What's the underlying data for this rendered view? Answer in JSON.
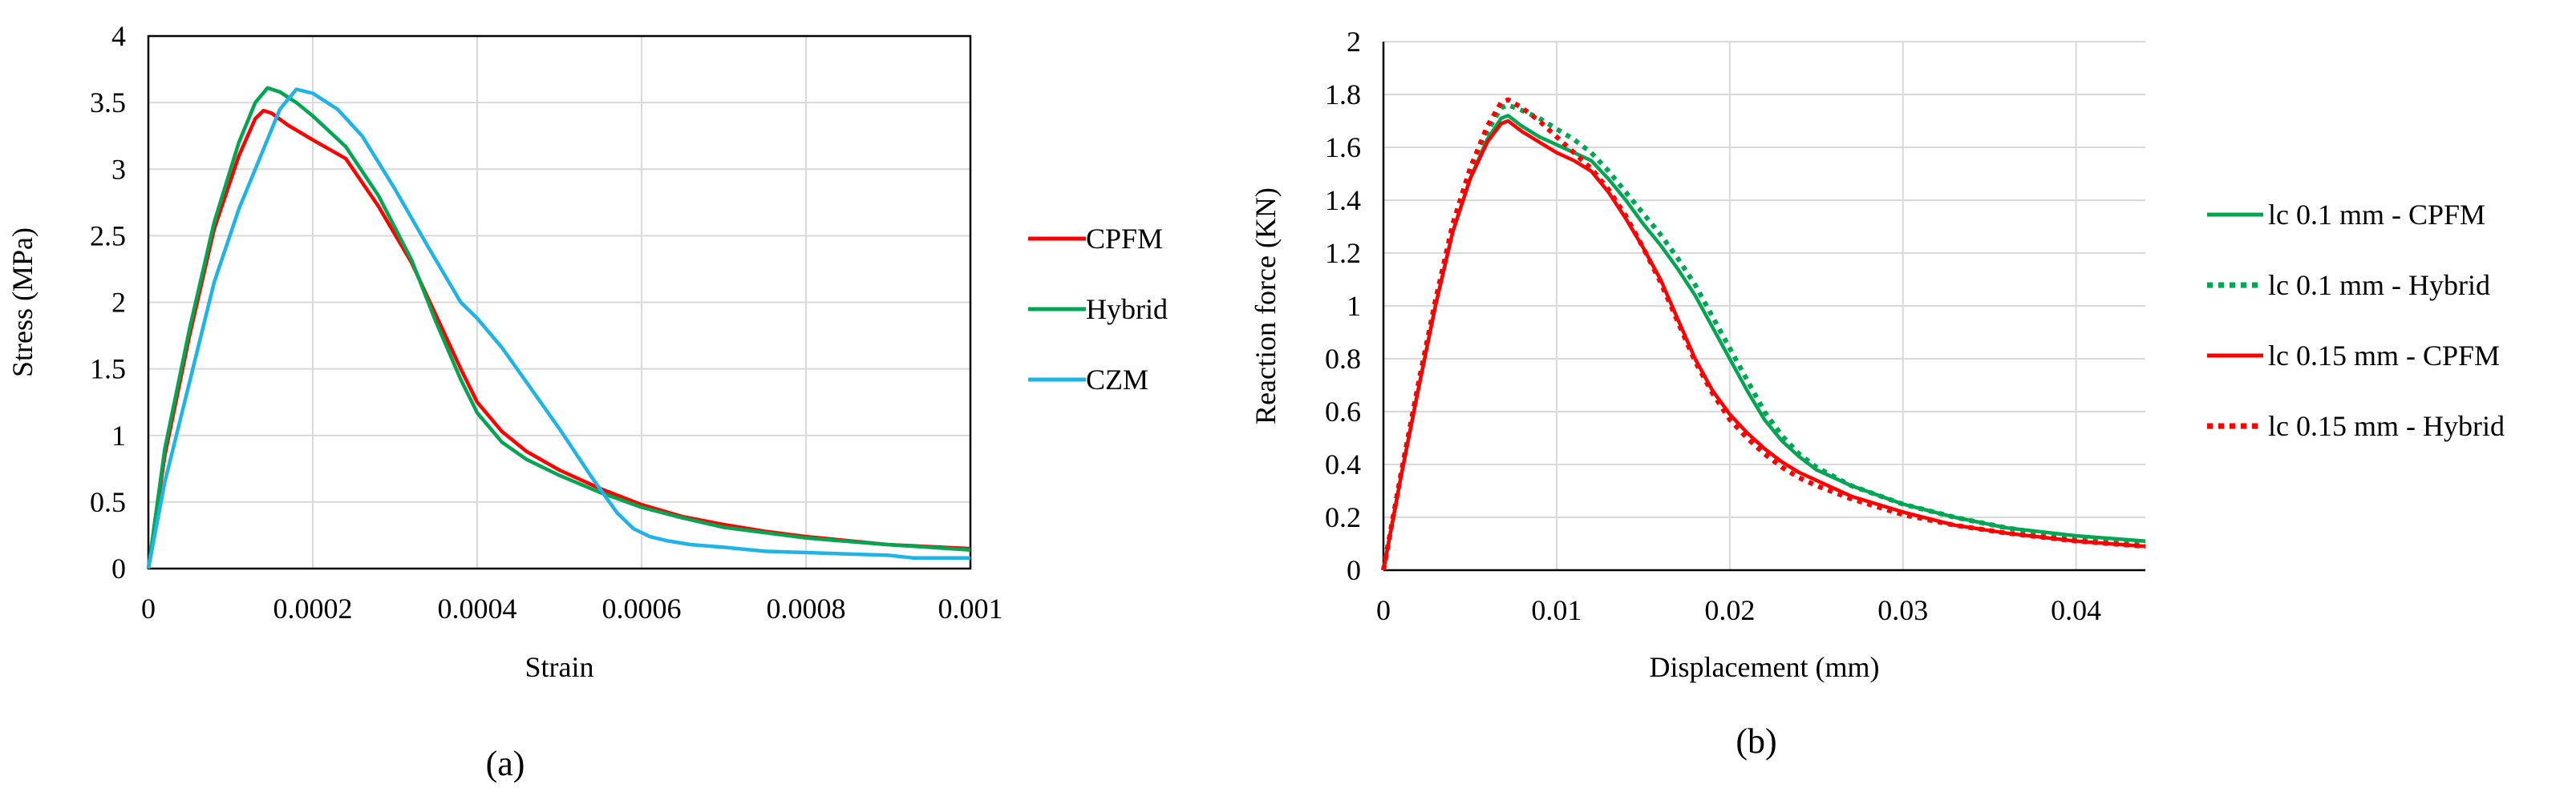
{
  "chart_data": [
    {
      "type": "line",
      "id": "a",
      "caption": "(a)",
      "xlabel": "Strain",
      "ylabel": "Stress (MPa)",
      "xlim": [
        0,
        0.001
      ],
      "ylim": [
        0,
        4
      ],
      "xticks": [
        0,
        0.0002,
        0.0004,
        0.0006,
        0.0008,
        0.001
      ],
      "xtick_labels": [
        "0",
        "0.0002",
        "0.0004",
        "0.0006",
        "0.0008",
        "0.001"
      ],
      "yticks": [
        0,
        0.5,
        1,
        1.5,
        2,
        2.5,
        3,
        3.5,
        4
      ],
      "ytick_labels": [
        "0",
        "0.5",
        "1",
        "1.5",
        "2",
        "2.5",
        "3",
        "3.5",
        "4"
      ],
      "grid": true,
      "legend_position": "right",
      "series": [
        {
          "name": "CPFM",
          "color": "#ff0000",
          "dash": "solid",
          "x": [
            0,
            2e-05,
            5e-05,
            8e-05,
            0.00011,
            0.00013,
            0.00014,
            0.00015,
            0.00017,
            0.0002,
            0.00024,
            0.00028,
            0.00032,
            0.00035,
            0.00038,
            0.0004,
            0.00043,
            0.00046,
            0.0005,
            0.00055,
            0.0006,
            0.00065,
            0.0007,
            0.00075,
            0.0008,
            0.0009,
            0.001
          ],
          "values": [
            0,
            0.85,
            1.75,
            2.55,
            3.1,
            3.38,
            3.44,
            3.42,
            3.33,
            3.22,
            3.08,
            2.72,
            2.3,
            1.9,
            1.5,
            1.25,
            1.03,
            0.88,
            0.74,
            0.6,
            0.48,
            0.39,
            0.33,
            0.28,
            0.24,
            0.18,
            0.15
          ]
        },
        {
          "name": "Hybrid",
          "color": "#00a651",
          "dash": "solid",
          "x": [
            0,
            2e-05,
            5e-05,
            8e-05,
            0.00011,
            0.00013,
            0.000145,
            0.00016,
            0.00018,
            0.0002,
            0.00024,
            0.00028,
            0.00032,
            0.00035,
            0.00038,
            0.0004,
            0.00043,
            0.00046,
            0.0005,
            0.00055,
            0.0006,
            0.00065,
            0.0007,
            0.00075,
            0.0008,
            0.0009,
            0.001
          ],
          "values": [
            0,
            0.9,
            1.8,
            2.6,
            3.2,
            3.5,
            3.61,
            3.58,
            3.5,
            3.4,
            3.17,
            2.8,
            2.32,
            1.85,
            1.42,
            1.17,
            0.95,
            0.82,
            0.7,
            0.57,
            0.46,
            0.38,
            0.31,
            0.27,
            0.23,
            0.18,
            0.14
          ]
        },
        {
          "name": "CZM",
          "color": "#1eb4e8",
          "dash": "solid",
          "x": [
            0,
            2e-05,
            5e-05,
            8e-05,
            0.00011,
            0.00014,
            0.00016,
            0.00018,
            0.0002,
            0.00023,
            0.00026,
            0.0003,
            0.00034,
            0.00038,
            0.0004,
            0.00043,
            0.00046,
            0.0005,
            0.00054,
            0.00057,
            0.00059,
            0.00061,
            0.00063,
            0.00066,
            0.0007,
            0.00075,
            0.0008,
            0.00085,
            0.0009,
            0.00093,
            0.00096,
            0.001
          ],
          "values": [
            0,
            0.65,
            1.4,
            2.15,
            2.7,
            3.15,
            3.45,
            3.6,
            3.57,
            3.45,
            3.25,
            2.85,
            2.42,
            2.0,
            1.88,
            1.66,
            1.4,
            1.05,
            0.68,
            0.42,
            0.3,
            0.24,
            0.21,
            0.18,
            0.16,
            0.13,
            0.12,
            0.11,
            0.1,
            0.08,
            0.08,
            0.08
          ]
        }
      ]
    },
    {
      "type": "line",
      "id": "b",
      "caption": "(b)",
      "xlabel": "Displacement (mm)",
      "ylabel": "Reaction force (KN)",
      "xlim": [
        0,
        0.044
      ],
      "ylim": [
        0,
        2
      ],
      "xticks": [
        0,
        0.01,
        0.02,
        0.03,
        0.04
      ],
      "xtick_labels": [
        "0",
        "0.01",
        "0.02",
        "0.03",
        "0.04"
      ],
      "yticks": [
        0,
        0.2,
        0.4,
        0.6,
        0.8,
        1,
        1.2,
        1.4,
        1.6,
        1.8,
        2
      ],
      "ytick_labels": [
        "0",
        "0.2",
        "0.4",
        "0.6",
        "0.8",
        "1",
        "1.2",
        "1.4",
        "1.6",
        "1.8",
        "2"
      ],
      "grid": true,
      "legend_position": "right",
      "series": [
        {
          "name": "lc 0.1 mm - CPFM",
          "color": "#00a651",
          "dash": "solid",
          "x": [
            0,
            0.001,
            0.002,
            0.003,
            0.004,
            0.005,
            0.006,
            0.0068,
            0.0072,
            0.008,
            0.009,
            0.01,
            0.011,
            0.012,
            0.013,
            0.014,
            0.015,
            0.016,
            0.017,
            0.018,
            0.019,
            0.02,
            0.021,
            0.022,
            0.023,
            0.024,
            0.025,
            0.027,
            0.03,
            0.033,
            0.036,
            0.04,
            0.044
          ],
          "values": [
            0,
            0.35,
            0.68,
            1.0,
            1.28,
            1.48,
            1.63,
            1.71,
            1.72,
            1.68,
            1.64,
            1.61,
            1.58,
            1.55,
            1.48,
            1.4,
            1.31,
            1.23,
            1.14,
            1.04,
            0.92,
            0.8,
            0.68,
            0.57,
            0.49,
            0.43,
            0.38,
            0.32,
            0.25,
            0.2,
            0.16,
            0.13,
            0.11
          ]
        },
        {
          "name": "lc 0.1 mm - Hybrid",
          "color": "#00a651",
          "dash": "dotted",
          "x": [
            0,
            0.001,
            0.002,
            0.003,
            0.004,
            0.005,
            0.006,
            0.0068,
            0.0072,
            0.008,
            0.009,
            0.01,
            0.011,
            0.012,
            0.013,
            0.014,
            0.015,
            0.016,
            0.017,
            0.018,
            0.019,
            0.02,
            0.021,
            0.022,
            0.023,
            0.024,
            0.025,
            0.027,
            0.03,
            0.033,
            0.036,
            0.04,
            0.044
          ],
          "values": [
            0,
            0.36,
            0.7,
            1.02,
            1.3,
            1.5,
            1.66,
            1.75,
            1.76,
            1.74,
            1.71,
            1.67,
            1.63,
            1.58,
            1.51,
            1.43,
            1.35,
            1.27,
            1.18,
            1.08,
            0.96,
            0.84,
            0.72,
            0.6,
            0.51,
            0.44,
            0.39,
            0.32,
            0.25,
            0.2,
            0.16,
            0.12,
            0.1
          ]
        },
        {
          "name": "lc 0.15 mm - CPFM",
          "color": "#ff0000",
          "dash": "solid",
          "x": [
            0,
            0.001,
            0.002,
            0.003,
            0.004,
            0.005,
            0.006,
            0.0068,
            0.0072,
            0.008,
            0.009,
            0.01,
            0.011,
            0.012,
            0.013,
            0.014,
            0.015,
            0.016,
            0.017,
            0.018,
            0.019,
            0.02,
            0.021,
            0.022,
            0.023,
            0.024,
            0.025,
            0.027,
            0.03,
            0.033,
            0.036,
            0.04,
            0.044
          ],
          "values": [
            0,
            0.35,
            0.68,
            1.0,
            1.28,
            1.48,
            1.62,
            1.69,
            1.7,
            1.66,
            1.62,
            1.58,
            1.55,
            1.51,
            1.43,
            1.33,
            1.22,
            1.1,
            0.95,
            0.8,
            0.68,
            0.59,
            0.52,
            0.46,
            0.41,
            0.37,
            0.34,
            0.28,
            0.22,
            0.17,
            0.14,
            0.11,
            0.09
          ]
        },
        {
          "name": "lc 0.15 mm - Hybrid",
          "color": "#ff0000",
          "dash": "dotted",
          "x": [
            0,
            0.001,
            0.002,
            0.003,
            0.004,
            0.005,
            0.006,
            0.0068,
            0.0072,
            0.008,
            0.009,
            0.01,
            0.011,
            0.012,
            0.013,
            0.014,
            0.015,
            0.016,
            0.017,
            0.018,
            0.019,
            0.02,
            0.021,
            0.022,
            0.023,
            0.024,
            0.025,
            0.027,
            0.03,
            0.033,
            0.036,
            0.04,
            0.044
          ],
          "values": [
            0,
            0.36,
            0.7,
            1.02,
            1.31,
            1.52,
            1.68,
            1.77,
            1.78,
            1.75,
            1.7,
            1.64,
            1.58,
            1.52,
            1.44,
            1.34,
            1.22,
            1.09,
            0.94,
            0.79,
            0.67,
            0.57,
            0.5,
            0.44,
            0.39,
            0.35,
            0.32,
            0.27,
            0.21,
            0.17,
            0.14,
            0.11,
            0.09
          ]
        }
      ]
    }
  ]
}
